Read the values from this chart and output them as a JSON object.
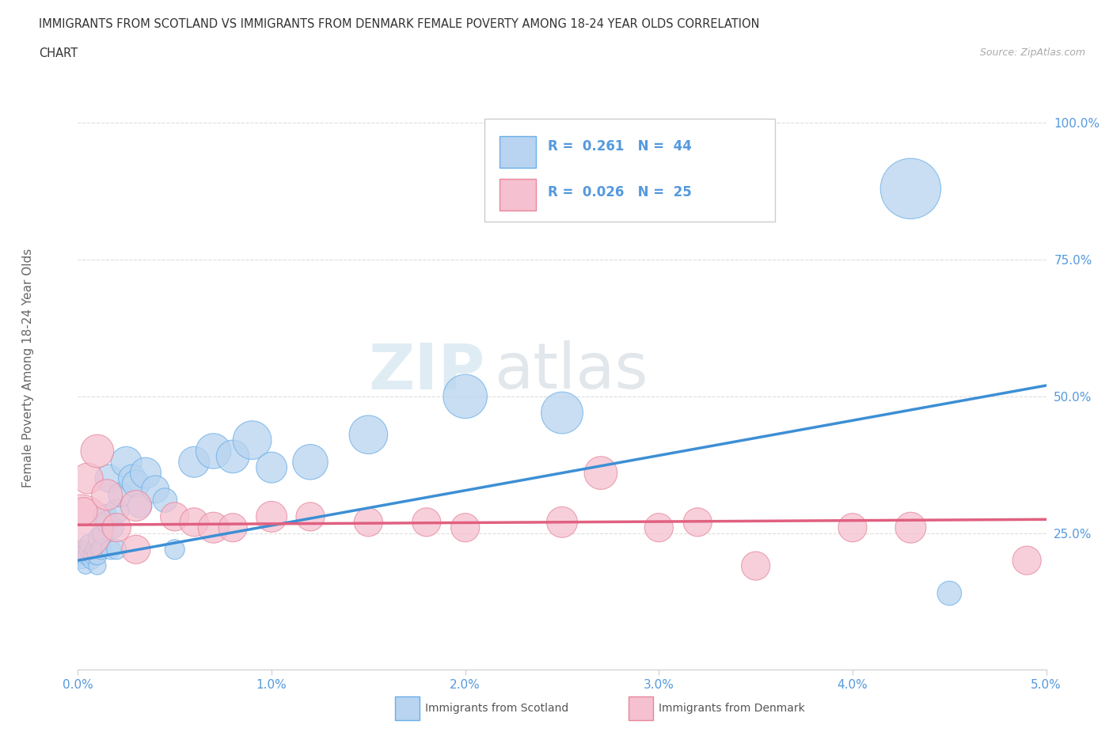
{
  "title_line1": "IMMIGRANTS FROM SCOTLAND VS IMMIGRANTS FROM DENMARK FEMALE POVERTY AMONG 18-24 YEAR OLDS CORRELATION",
  "title_line2": "CHART",
  "source": "Source: ZipAtlas.com",
  "ylabel": "Female Poverty Among 18-24 Year Olds",
  "xlim": [
    0.0,
    0.05
  ],
  "ylim": [
    0.0,
    1.05
  ],
  "xticks": [
    0.0,
    0.01,
    0.02,
    0.03,
    0.04,
    0.05
  ],
  "xticklabels": [
    "0.0%",
    "1.0%",
    "2.0%",
    "3.0%",
    "4.0%",
    "5.0%"
  ],
  "ytick_positions": [
    0.25,
    0.5,
    0.75,
    1.0
  ],
  "ytick_labels": [
    "25.0%",
    "50.0%",
    "75.0%",
    "100.0%"
  ],
  "scotland_color": "#b8d4f0",
  "scotland_edge_color": "#6aaee8",
  "scotland_line_color": "#3d8fd4",
  "denmark_color": "#f5c0cf",
  "denmark_edge_color": "#e8869a",
  "denmark_line_color": "#e06080",
  "legend_scotland_R": "0.261",
  "legend_scotland_N": "44",
  "legend_denmark_R": "0.026",
  "legend_denmark_N": "25",
  "watermark_zip": "ZIP",
  "watermark_atlas": "atlas",
  "background_color": "#ffffff",
  "grid_color": "#dddddd",
  "tick_color": "#5599dd",
  "scotland_x": [
    0.0001,
    0.0002,
    0.0002,
    0.0003,
    0.0003,
    0.0004,
    0.0005,
    0.0005,
    0.0006,
    0.0007,
    0.0008,
    0.0009,
    0.001,
    0.001,
    0.0011,
    0.0012,
    0.0013,
    0.0014,
    0.0015,
    0.0016,
    0.0017,
    0.0018,
    0.002,
    0.002,
    0.0022,
    0.0025,
    0.0028,
    0.003,
    0.0032,
    0.0035,
    0.004,
    0.0045,
    0.005,
    0.006,
    0.007,
    0.008,
    0.009,
    0.01,
    0.012,
    0.015,
    0.02,
    0.025,
    0.043,
    0.045
  ],
  "scotland_y": [
    0.21,
    0.2,
    0.22,
    0.22,
    0.21,
    0.19,
    0.21,
    0.22,
    0.23,
    0.2,
    0.21,
    0.22,
    0.19,
    0.21,
    0.24,
    0.22,
    0.25,
    0.28,
    0.27,
    0.35,
    0.22,
    0.26,
    0.29,
    0.22,
    0.32,
    0.38,
    0.35,
    0.34,
    0.3,
    0.36,
    0.33,
    0.31,
    0.22,
    0.38,
    0.4,
    0.39,
    0.42,
    0.37,
    0.38,
    0.43,
    0.5,
    0.47,
    0.88,
    0.14
  ],
  "scotland_size": [
    18,
    15,
    18,
    16,
    18,
    15,
    18,
    16,
    18,
    16,
    18,
    18,
    16,
    18,
    20,
    18,
    20,
    22,
    20,
    25,
    18,
    20,
    22,
    18,
    22,
    28,
    25,
    25,
    22,
    28,
    25,
    22,
    18,
    28,
    32,
    30,
    35,
    28,
    32,
    35,
    40,
    38,
    55,
    22
  ],
  "denmark_x": [
    0.0001,
    0.0003,
    0.0005,
    0.001,
    0.0015,
    0.002,
    0.003,
    0.003,
    0.005,
    0.006,
    0.007,
    0.008,
    0.01,
    0.012,
    0.015,
    0.018,
    0.02,
    0.025,
    0.027,
    0.03,
    0.032,
    0.035,
    0.04,
    0.043,
    0.049
  ],
  "denmark_y": [
    0.26,
    0.29,
    0.35,
    0.4,
    0.32,
    0.26,
    0.3,
    0.22,
    0.28,
    0.27,
    0.26,
    0.26,
    0.28,
    0.28,
    0.27,
    0.27,
    0.26,
    0.27,
    0.36,
    0.26,
    0.27,
    0.19,
    0.26,
    0.26,
    0.2
  ],
  "denmark_size": [
    60,
    25,
    28,
    30,
    28,
    26,
    28,
    26,
    26,
    26,
    28,
    26,
    28,
    26,
    26,
    26,
    26,
    28,
    30,
    26,
    26,
    26,
    26,
    28,
    26
  ],
  "scotland_trend_x0": 0.0,
  "scotland_trend_y0": 0.2,
  "scotland_trend_x1": 0.05,
  "scotland_trend_y1": 0.52,
  "denmark_trend_x0": 0.0,
  "denmark_trend_y0": 0.265,
  "denmark_trend_x1": 0.05,
  "denmark_trend_y1": 0.275
}
